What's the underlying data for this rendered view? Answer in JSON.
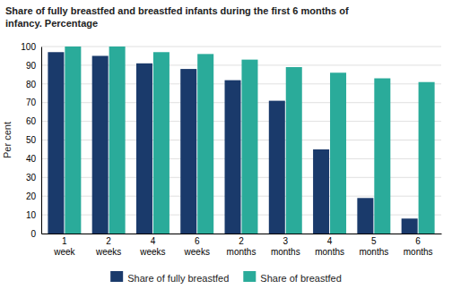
{
  "chart_data": {
    "type": "bar",
    "title": "Share of fully breastfed and breastfed infants during the first 6 months of\ninfancy. Percentage",
    "y_label": "Per cent",
    "categories": [
      "1\nweek",
      "2\nweeks",
      "4\nweeks",
      "6\nweeks",
      "2\nmonths",
      "3\nmonths",
      "4\nmonths",
      "5\nmonths",
      "6\nmonths"
    ],
    "series": [
      {
        "name": "Share of fully breastfed",
        "color": "#1a3a6b",
        "values": [
          97,
          95,
          91,
          88,
          82,
          71,
          45,
          19,
          8
        ]
      },
      {
        "name": "Share of breastfed",
        "color": "#2aab9a",
        "values": [
          100,
          100,
          97,
          96,
          93,
          89,
          86,
          83,
          81
        ]
      }
    ],
    "ylim": [
      0,
      100
    ],
    "yticks": [
      0,
      10,
      20,
      30,
      40,
      50,
      60,
      70,
      80,
      90,
      100
    ],
    "grid": true,
    "legend": "bottom"
  }
}
